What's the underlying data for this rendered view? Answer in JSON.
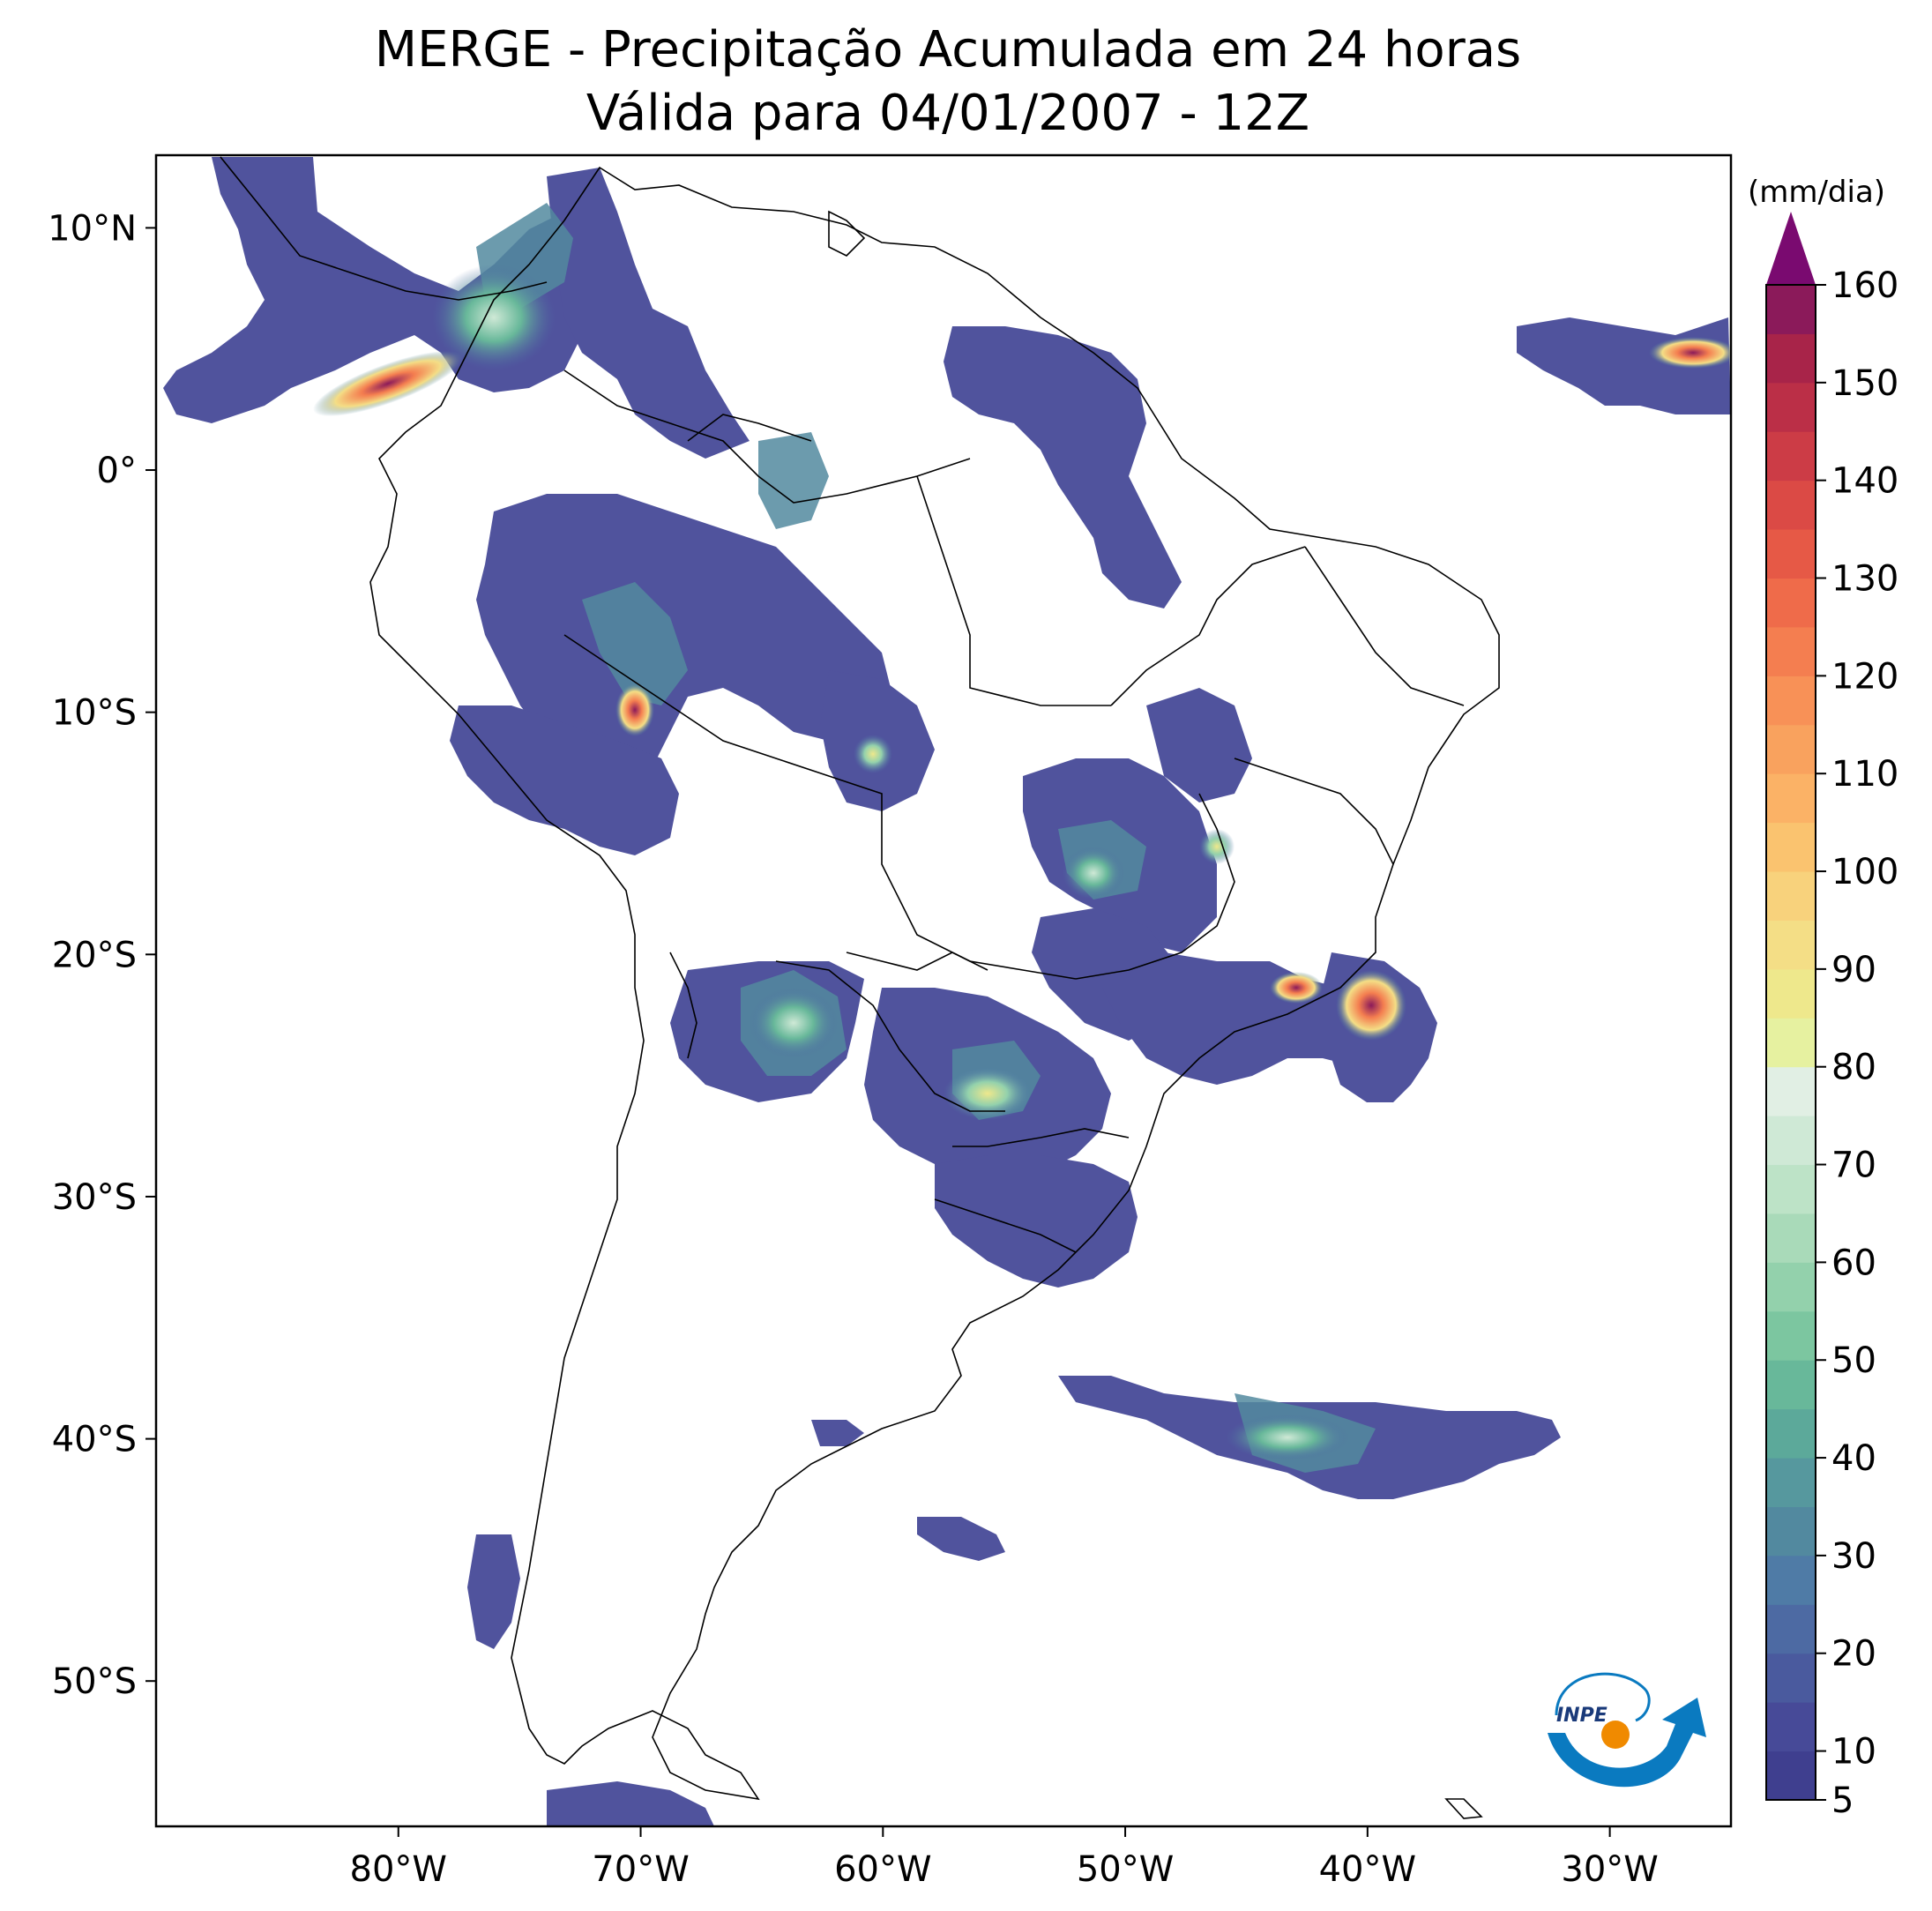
{
  "title": {
    "line1": "MERGE - Precipitação Acumulada em 24 horas",
    "line2": "Válida para 04/01/2007 - 12Z"
  },
  "axes": {
    "lon_labels": [
      "80°W",
      "70°W",
      "60°W",
      "50°W",
      "40°W",
      "30°W"
    ],
    "lat_labels": [
      "10°N",
      "0°",
      "10°S",
      "20°S",
      "30°S",
      "40°S",
      "50°S"
    ],
    "lon_values": [
      -80,
      -70,
      -60,
      -50,
      -40,
      -30
    ],
    "lat_values": [
      10,
      0,
      -10,
      -20,
      -30,
      -40,
      -50
    ],
    "lon_range": [
      -90,
      -25
    ],
    "lat_range": [
      -56,
      13
    ]
  },
  "colorbar": {
    "unit": "(mm/dia)",
    "tick_labels": [
      "5",
      "10",
      "20",
      "30",
      "40",
      "50",
      "60",
      "70",
      "80",
      "90",
      "100",
      "110",
      "120",
      "130",
      "140",
      "150",
      "160"
    ],
    "tick_values": [
      5,
      10,
      20,
      30,
      40,
      50,
      60,
      70,
      80,
      90,
      100,
      110,
      120,
      130,
      140,
      150,
      160
    ],
    "colors": [
      "#3f3f8f",
      "#474a98",
      "#4a5a9e",
      "#4d6aa3",
      "#4f7ba6",
      "#52899f",
      "#56989e",
      "#5ca99a",
      "#68b89a",
      "#7cc6a0",
      "#93d1ac",
      "#a9dab9",
      "#bde3c7",
      "#cfe9d6",
      "#e1efe4",
      "#e6f1a0",
      "#eee88c",
      "#f4de86",
      "#f8d27c",
      "#fac36f",
      "#fbb266",
      "#f9a25e",
      "#f89157",
      "#f47e50",
      "#ef6b4a",
      "#e65946",
      "#db4a45",
      "#cc3c46",
      "#bb2f47",
      "#a82449",
      "#8b1a5a"
    ],
    "extend_color": "#7a0a70"
  },
  "logo": {
    "text": "INPE"
  },
  "frame_color": "#000000"
}
